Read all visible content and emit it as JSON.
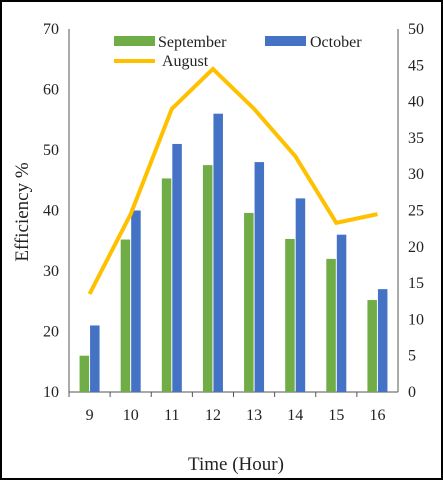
{
  "chart_data": {
    "type": "bar",
    "categories": [
      "9",
      "10",
      "11",
      "12",
      "13",
      "14",
      "15",
      "16"
    ],
    "xlabel": "Time (Hour)",
    "ylabel": "Efficiency %",
    "ylim": [
      10,
      70
    ],
    "yticks": [
      10,
      20,
      30,
      40,
      50,
      60,
      70
    ],
    "y2lim": [
      0,
      50
    ],
    "y2ticks": [
      0,
      5,
      10,
      15,
      20,
      25,
      30,
      35,
      40,
      45,
      50
    ],
    "grid": false,
    "legend_placement": "top",
    "series": [
      {
        "name": "September",
        "type": "bar",
        "axis": "left",
        "color": "#70ad47",
        "values": [
          16,
          35.2,
          45.3,
          47.5,
          39.6,
          35.3,
          32,
          25.2
        ]
      },
      {
        "name": "October",
        "type": "bar",
        "axis": "left",
        "color": "#4472c4",
        "values": [
          21,
          40,
          51,
          56,
          48,
          42,
          36,
          27
        ]
      },
      {
        "name": "August",
        "type": "line",
        "axis": "right",
        "color": "#ffc000",
        "values": [
          13.5,
          24.5,
          39,
          44.5,
          39,
          32.5,
          23.3,
          24.5
        ]
      }
    ]
  }
}
